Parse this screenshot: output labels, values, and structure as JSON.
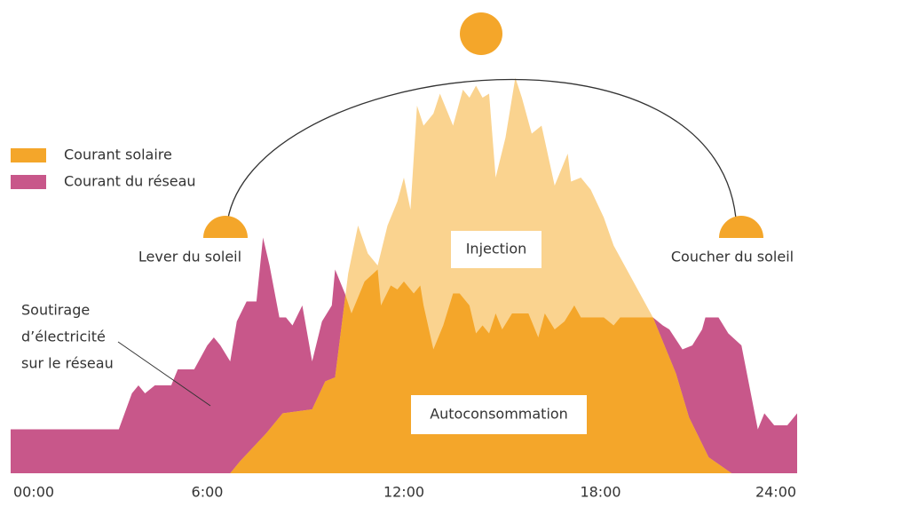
{
  "chart_data": {
    "type": "area",
    "xlim": [
      0,
      24
    ],
    "xticks": [
      {
        "value": 0,
        "label": "00:00"
      },
      {
        "value": 6,
        "label": "6:00"
      },
      {
        "value": 12,
        "label": "12:00"
      },
      {
        "value": 18,
        "label": "18:00"
      },
      {
        "value": 24,
        "label": "24:00"
      }
    ],
    "ylim": [
      0,
      100
    ],
    "series": [
      {
        "name": "Courant solaire",
        "color": "#f4a62a",
        "excess_color": "#fad38f",
        "x": [
          6.7,
          7.0,
          7.8,
          8.3,
          9.2,
          9.6,
          9.9,
          10.3,
          10.6,
          10.9,
          11.2,
          11.5,
          11.8,
          12.0,
          12.2,
          12.4,
          12.6,
          12.9,
          13.1,
          13.5,
          13.8,
          14.0,
          14.2,
          14.4,
          14.6,
          14.8,
          15.1,
          15.4,
          15.6,
          15.9,
          16.2,
          16.6,
          17.0,
          17.1,
          17.4,
          17.7,
          18.1,
          18.4,
          18.8,
          19.6,
          20.3,
          20.7,
          21.3,
          22.0
        ],
        "values": [
          0,
          3,
          10,
          15,
          16,
          23,
          24,
          50,
          62,
          55,
          52,
          62,
          68,
          74,
          66,
          92,
          87,
          90,
          95,
          87,
          96,
          94,
          97,
          94,
          95,
          74,
          84,
          99,
          94,
          85,
          87,
          72,
          80,
          73,
          74,
          71,
          64,
          57,
          51,
          39,
          25,
          14,
          4,
          0
        ]
      },
      {
        "name": "Courant du réseau",
        "color": "#c8578a",
        "x": [
          0,
          3.3,
          3.7,
          3.9,
          4.1,
          4.4,
          4.9,
          5.1,
          5.6,
          6,
          6.2,
          6.4,
          6.7,
          6.9,
          7.2,
          7.5,
          7.7,
          7.9,
          8.2,
          8.4,
          8.6,
          8.9,
          9.2,
          9.5,
          9.8,
          9.9,
          10.2,
          10.4,
          10.8,
          11.2,
          11.3,
          11.6,
          11.8,
          12,
          12.3,
          12.5,
          12.6,
          12.9,
          13.2,
          13.5,
          13.7,
          14,
          14.2,
          14.4,
          14.6,
          14.8,
          15,
          15.3,
          15.8,
          16.1,
          16.3,
          16.6,
          16.9,
          17.2,
          17.4,
          18.1,
          18.4,
          18.6,
          19.6,
          19.9,
          20.1,
          20.5,
          20.8,
          21.1,
          21.2,
          21.6,
          21.9,
          22.3,
          22.8,
          23,
          23.3,
          23.7,
          24
        ],
        "values": [
          11,
          11,
          20,
          22,
          20,
          22,
          22,
          26,
          26,
          32,
          34,
          32,
          28,
          38,
          43,
          43,
          59,
          52,
          39,
          39,
          37,
          42,
          28,
          38,
          42,
          51,
          45,
          40,
          48,
          51,
          42,
          47,
          46,
          48,
          45,
          47,
          42,
          31,
          37,
          45,
          45,
          42,
          35,
          37,
          35,
          40,
          36,
          40,
          40,
          34,
          40,
          36,
          38,
          42,
          39,
          39,
          37,
          39,
          39,
          37,
          36,
          31,
          32,
          36,
          39,
          39,
          35,
          32,
          11,
          15,
          12,
          12,
          15
        ]
      }
    ],
    "annotations": {
      "sunrise": "Lever du soleil",
      "sunset": "Coucher du soleil",
      "injection": "Injection",
      "self_consumption": "Autoconsommation",
      "grid_draw": [
        "Soutirage",
        "d’électricité",
        "sur le réseau"
      ]
    }
  }
}
